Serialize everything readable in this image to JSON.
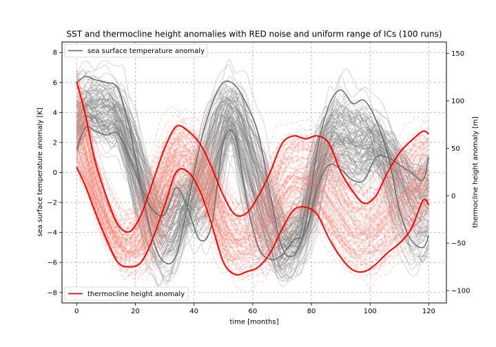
{
  "chart_data": {
    "type": "line",
    "title": "SST and thermocline height anomalies with RED noise and uniform range of ICs (100 runs)",
    "xlabel": "time [months]",
    "ylabel_left": "sea surface temperature anomaly [K]",
    "ylabel_right": "thermocline height anomaly [m]",
    "xlim": [
      -5,
      126
    ],
    "ylim_left": [
      -8.7,
      8.7
    ],
    "ylim_right": [
      -113,
      162
    ],
    "xticks": [
      "0",
      "20",
      "40",
      "60",
      "80",
      "100",
      "120"
    ],
    "yticks_left": [
      "8",
      "6",
      "4",
      "2",
      "0",
      "−2",
      "−4",
      "−6",
      "−8"
    ],
    "yticks_right": [
      "150",
      "100",
      "50",
      "0",
      "−50",
      "−100"
    ],
    "grid": true,
    "ensemble_runs": 100,
    "legend_left": {
      "label": "sea surface temperature anomaly",
      "placement": "top-left",
      "color": "#707070"
    },
    "legend_right": {
      "label": "thermocline height anomaly",
      "placement": "bottom-left",
      "color": "#ff0000"
    },
    "series": [
      {
        "name": "sea surface temperature anomaly",
        "axis": "left",
        "color": "#707070",
        "highlighted_runs": [
          {
            "x": [
              0,
              3,
              6,
              10,
              14,
              18,
              22,
              26,
              30,
              34,
              38,
              42,
              46,
              50,
              54,
              58,
              62,
              66,
              70,
              74,
              78,
              82,
              86,
              90,
              94,
              98,
              102,
              106,
              110,
              114,
              118,
              120
            ],
            "y": [
              6.0,
              6.4,
              6.2,
              6.0,
              5.6,
              3.0,
              -1.0,
              -4.5,
              -6.0,
              -5.5,
              -2.0,
              1.8,
              4.5,
              6.0,
              5.8,
              4.5,
              2.5,
              -1.5,
              -5.0,
              -5.5,
              -3.5,
              1.5,
              4.5,
              5.5,
              4.6,
              4.8,
              3.5,
              1.2,
              -2.5,
              -4.5,
              -5.0,
              -4.2
            ]
          },
          {
            "x": [
              0,
              3,
              6,
              10,
              14,
              18,
              22,
              26,
              30,
              34,
              38,
              42,
              46,
              50,
              54,
              58,
              62,
              66,
              70,
              74,
              78,
              82,
              86,
              90,
              94,
              98,
              102,
              106,
              110,
              114,
              118,
              120
            ],
            "y": [
              1.5,
              3.0,
              2.8,
              2.5,
              2.6,
              1.0,
              -1.0,
              -2.5,
              -2.8,
              -1.0,
              -2.5,
              -4.5,
              -3.5,
              2.0,
              2.4,
              -2.0,
              -5.0,
              -5.8,
              -5.5,
              -4.5,
              -4.0,
              -1.0,
              0.5,
              0.2,
              -0.5,
              -0.5,
              1.0,
              1.0,
              0.5,
              0.0,
              -0.5,
              1.0
            ]
          }
        ]
      },
      {
        "name": "thermocline height anomaly",
        "axis": "right",
        "color": "#ff0000",
        "highlighted_runs": [
          {
            "x": [
              0,
              3,
              6,
              10,
              14,
              18,
              22,
              26,
              30,
              34,
              38,
              42,
              46,
              50,
              54,
              58,
              62,
              66,
              70,
              74,
              78,
              82,
              86,
              90,
              94,
              98,
              102,
              106,
              110,
              114,
              118,
              120
            ],
            "y": [
              120,
              85,
              40,
              0,
              -30,
              -38,
              -20,
              15,
              50,
              73,
              68,
              55,
              30,
              0,
              -20,
              -18,
              0,
              25,
              55,
              63,
              60,
              63,
              55,
              25,
              5,
              -8,
              0,
              25,
              45,
              58,
              68,
              65
            ]
          },
          {
            "x": [
              0,
              3,
              6,
              10,
              14,
              18,
              22,
              26,
              30,
              34,
              38,
              42,
              46,
              50,
              54,
              58,
              62,
              66,
              70,
              74,
              78,
              82,
              86,
              90,
              94,
              98,
              102,
              106,
              110,
              114,
              118,
              120
            ],
            "y": [
              30,
              10,
              -15,
              -45,
              -70,
              -75,
              -70,
              -45,
              -10,
              25,
              25,
              5,
              -30,
              -70,
              -83,
              -80,
              -75,
              -60,
              -35,
              -15,
              -12,
              -20,
              -45,
              -65,
              -78,
              -80,
              -72,
              -60,
              -50,
              -35,
              -5,
              -10
            ]
          }
        ]
      }
    ]
  }
}
